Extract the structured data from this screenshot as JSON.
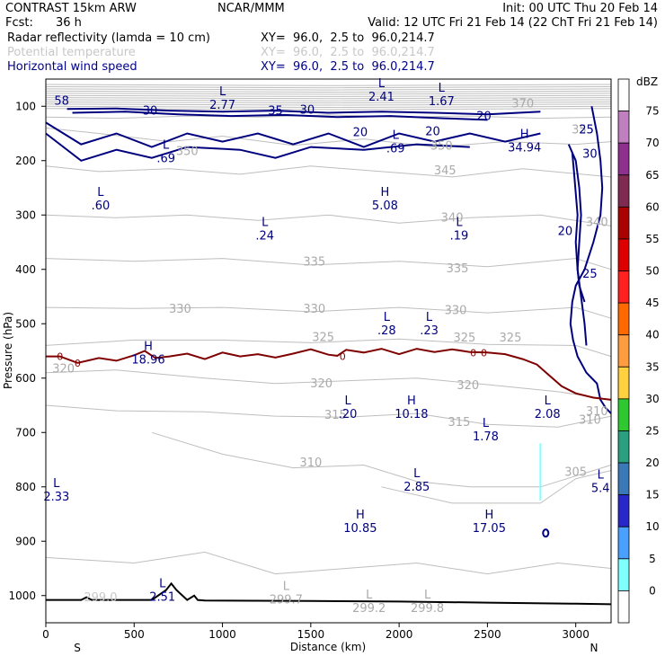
{
  "header": {
    "model": "CONTRAST 15km ARW",
    "fcst_label": "Fcst:",
    "fcst_value": "36 h",
    "center": "NCAR/MMM",
    "init": "Init: 00 UTC Thu 20 Feb 14",
    "valid": "Valid: 12 UTC Fri 21 Feb 14 (22 ChT Fri 21 Feb 14)",
    "lines": [
      {
        "label": "Radar reflectivity (lamda = 10 cm)",
        "xy": "XY=  96.0,  2.5 to  96.0,214.7",
        "color": "#000000"
      },
      {
        "label": "Potential temperature",
        "xy": "XY=  96.0,  2.5 to  96.0,214.7",
        "color": "#c8c8c8"
      },
      {
        "label": "Horizontal wind speed",
        "xy": "XY=  96.0,  2.5 to  96.0,214.7",
        "color": "#00008b"
      }
    ]
  },
  "colors": {
    "theta": "#bebebe",
    "wind": "#00007f",
    "freezing": "#7f0000",
    "terrain": "#000000"
  },
  "chart_data": {
    "type": "contour",
    "xlabel": "Distance (km)",
    "ylabel": "Pressure (hPa)",
    "xlim": [
      0,
      3200
    ],
    "ylim": [
      1050,
      50
    ],
    "xticks": [
      0,
      500,
      1000,
      1500,
      2000,
      2500,
      3000
    ],
    "yticks": [
      100,
      200,
      300,
      400,
      500,
      600,
      700,
      800,
      900,
      1000
    ],
    "x_end_labels": {
      "left": "S",
      "right": "N"
    },
    "colorbar": {
      "title": "dBZ",
      "levels": [
        75,
        70,
        65,
        60,
        55,
        50,
        45,
        40,
        35,
        30,
        25,
        20,
        15,
        10,
        5,
        0
      ],
      "colors": [
        "#ffffff",
        "#c080c0",
        "#8e308e",
        "#7f2a50",
        "#aa0000",
        "#dd0000",
        "#ff2020",
        "#ff6a00",
        "#ff9c40",
        "#ffd040",
        "#30c830",
        "#2aa080",
        "#3a78b8",
        "#2828c8",
        "#4aa0ff",
        "#80ffff",
        "#ffffff"
      ]
    },
    "theta_labels": [
      {
        "x": 2700,
        "p": 102,
        "text": "370"
      },
      {
        "x": 800,
        "p": 190,
        "text": "350"
      },
      {
        "x": 2240,
        "p": 180,
        "text": "350"
      },
      {
        "x": 2260,
        "p": 225,
        "text": "345"
      },
      {
        "x": 2300,
        "p": 312,
        "text": "340"
      },
      {
        "x": 1520,
        "p": 393,
        "text": "335"
      },
      {
        "x": 2330,
        "p": 405,
        "text": "335"
      },
      {
        "x": 760,
        "p": 480,
        "text": "330"
      },
      {
        "x": 1520,
        "p": 480,
        "text": "330"
      },
      {
        "x": 2320,
        "p": 482,
        "text": "330"
      },
      {
        "x": 1570,
        "p": 532,
        "text": "325"
      },
      {
        "x": 2370,
        "p": 533,
        "text": "325"
      },
      {
        "x": 2630,
        "p": 533,
        "text": "325"
      },
      {
        "x": 100,
        "p": 590,
        "text": "320"
      },
      {
        "x": 1560,
        "p": 617,
        "text": "320"
      },
      {
        "x": 2390,
        "p": 620,
        "text": "320"
      },
      {
        "x": 1640,
        "p": 675,
        "text": "315"
      },
      {
        "x": 2340,
        "p": 688,
        "text": "315"
      },
      {
        "x": 3080,
        "p": 684,
        "text": "310"
      },
      {
        "x": 1500,
        "p": 762,
        "text": "310"
      },
      {
        "x": 3000,
        "p": 780,
        "text": "305"
      },
      {
        "x": 3120,
        "p": 668,
        "text": "310"
      },
      {
        "x": 3120,
        "p": 320,
        "text": "340"
      },
      {
        "x": 3040,
        "p": 150,
        "text": "355"
      }
    ],
    "wind_labels": [
      {
        "x": 90,
        "p": 97,
        "text": "58"
      },
      {
        "x": 590,
        "p": 115,
        "text": "30"
      },
      {
        "x": 1300,
        "p": 115,
        "text": "35"
      },
      {
        "x": 1480,
        "p": 114,
        "text": "30"
      },
      {
        "x": 1780,
        "p": 155,
        "text": "20"
      },
      {
        "x": 2190,
        "p": 153,
        "text": "20"
      },
      {
        "x": 2480,
        "p": 125,
        "text": "20"
      },
      {
        "x": 3060,
        "p": 150,
        "text": "25"
      },
      {
        "x": 3080,
        "p": 195,
        "text": "30"
      },
      {
        "x": 2940,
        "p": 337,
        "text": "20"
      },
      {
        "x": 3080,
        "p": 415,
        "text": "25"
      }
    ],
    "extrema": [
      {
        "x": 1000,
        "p": 80,
        "kind": "L",
        "value": "2.77"
      },
      {
        "x": 1900,
        "p": 65,
        "kind": "L",
        "value": "2.41"
      },
      {
        "x": 2240,
        "p": 73,
        "kind": "L",
        "value": "1.67"
      },
      {
        "x": 2710,
        "p": 158,
        "kind": "H",
        "value": "34.94"
      },
      {
        "x": 680,
        "p": 178,
        "kind": "L",
        "value": ".69"
      },
      {
        "x": 1980,
        "p": 160,
        "kind": "L",
        "value": ".69"
      },
      {
        "x": 310,
        "p": 265,
        "kind": "L",
        "value": ".60"
      },
      {
        "x": 1920,
        "p": 265,
        "kind": "H",
        "value": "5.08"
      },
      {
        "x": 1240,
        "p": 320,
        "kind": "L",
        "value": ".24"
      },
      {
        "x": 2340,
        "p": 320,
        "kind": "L",
        "value": ".19"
      },
      {
        "x": 1930,
        "p": 495,
        "kind": "L",
        "value": ".28"
      },
      {
        "x": 2170,
        "p": 495,
        "kind": "L",
        "value": ".23"
      },
      {
        "x": 580,
        "p": 548,
        "kind": "H",
        "value": "18.96"
      },
      {
        "x": 1710,
        "p": 648,
        "kind": "L",
        "value": ".20"
      },
      {
        "x": 2070,
        "p": 648,
        "kind": "H",
        "value": "10.18"
      },
      {
        "x": 2840,
        "p": 648,
        "kind": "L",
        "value": "2.08"
      },
      {
        "x": 2490,
        "p": 690,
        "kind": "L",
        "value": "1.78"
      },
      {
        "x": 60,
        "p": 800,
        "kind": "L",
        "value": "2.33"
      },
      {
        "x": 2100,
        "p": 782,
        "kind": "L",
        "value": "2.85"
      },
      {
        "x": 3140,
        "p": 785,
        "kind": "L",
        "value": "5.4"
      },
      {
        "x": 1780,
        "p": 858,
        "kind": "H",
        "value": "10.85"
      },
      {
        "x": 2510,
        "p": 858,
        "kind": "H",
        "value": "17.05"
      },
      {
        "x": 660,
        "p": 985,
        "kind": "L",
        "value": "2.51"
      },
      {
        "x": 1360,
        "p": 990,
        "kind": "L",
        "value": "299.7"
      },
      {
        "x": 1830,
        "p": 1005,
        "kind": "L",
        "value": "299.2"
      },
      {
        "x": 2160,
        "p": 1005,
        "kind": "L",
        "value": "299.8"
      }
    ],
    "lowfaint_labels": [
      {
        "x": 310,
        "p": 1010,
        "text": "299.0"
      }
    ],
    "zero_labels": [
      {
        "x": 80,
        "p": 560,
        "text": "0"
      },
      {
        "x": 180,
        "p": 572,
        "text": "0"
      },
      {
        "x": 1680,
        "p": 560,
        "text": "0"
      },
      {
        "x": 2420,
        "p": 553,
        "text": "0"
      },
      {
        "x": 2480,
        "p": 553,
        "text": "0"
      }
    ],
    "series": [
      {
        "type": "terrain",
        "x": [
          0,
          200,
          230,
          260,
          600,
          680,
          710,
          740,
          800,
          840,
          860,
          900,
          1500,
          2000,
          2500,
          3000,
          3200
        ],
        "p": [
          1008,
          1008,
          1003,
          1008,
          1008,
          990,
          978,
          990,
          1008,
          1000,
          1008,
          1009,
          1010,
          1011,
          1013,
          1015,
          1016
        ]
      },
      {
        "type": "freezing",
        "x": [
          0,
          80,
          180,
          300,
          400,
          500,
          560,
          620,
          700,
          800,
          900,
          1000,
          1100,
          1200,
          1300,
          1400,
          1500,
          1600,
          1650,
          1700,
          1800,
          1900,
          2000,
          2100,
          2200,
          2300,
          2400,
          2500,
          2600,
          2700,
          2780,
          2850,
          2920,
          3000,
          3100,
          3200
        ],
        "p": [
          560,
          560,
          572,
          563,
          568,
          558,
          550,
          563,
          560,
          555,
          565,
          553,
          560,
          556,
          562,
          555,
          547,
          557,
          559,
          548,
          553,
          546,
          556,
          546,
          552,
          547,
          552,
          553,
          556,
          565,
          575,
          595,
          615,
          628,
          636,
          640
        ]
      },
      {
        "type": "wind",
        "x": [
          3090,
          3120,
          3140,
          3150,
          3140,
          3100,
          3050,
          3000,
          2980,
          2970,
          2985,
          3010,
          3060,
          3120,
          3140,
          3170,
          3200
        ],
        "p": [
          100,
          150,
          200,
          250,
          300,
          350,
          400,
          430,
          460,
          500,
          530,
          560,
          590,
          610,
          640,
          655,
          665
        ]
      },
      {
        "type": "wind",
        "x": [
          2960,
          3000,
          3020,
          3030,
          3020,
          3010,
          3020,
          3050
        ],
        "p": [
          170,
          200,
          250,
          300,
          350,
          400,
          430,
          460
        ]
      },
      {
        "type": "wind",
        "x": [
          2980,
          2990,
          3000,
          3010,
          3000,
          3010,
          3030,
          3050,
          3060
        ],
        "p": [
          185,
          220,
          260,
          300,
          350,
          400,
          450,
          500,
          540
        ]
      }
    ]
  }
}
